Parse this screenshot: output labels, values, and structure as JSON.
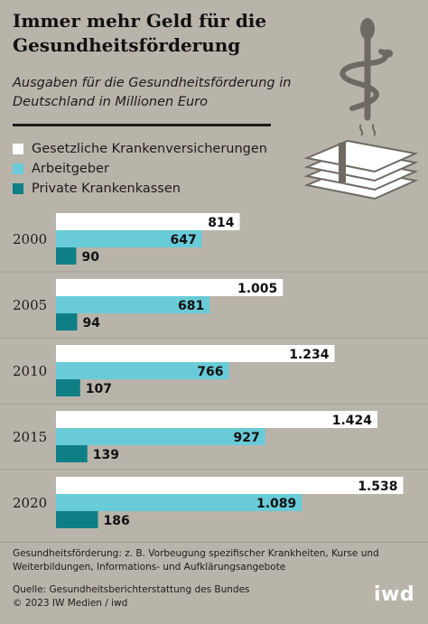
{
  "title": "Immer mehr Geld für die Gesundheitsförderung",
  "subtitle": "Ausgaben für die Gesundheitsförderung in Deutschland in Millionen Euro",
  "colors": {
    "background": "#b9b4aa",
    "gkv": "#ffffff",
    "arbeitgeber": "#69cbd8",
    "pkv": "#0f7f86"
  },
  "chart_data": {
    "type": "bar",
    "orientation": "horizontal",
    "categories": [
      "2000",
      "2005",
      "2010",
      "2015",
      "2020"
    ],
    "series": [
      {
        "name": "Gesetzliche Krankenversicherungen",
        "values": [
          814,
          1005,
          1234,
          1424,
          1538
        ],
        "labels": [
          "814",
          "1.005",
          "1.234",
          "1.424",
          "1.538"
        ]
      },
      {
        "name": "Arbeitgeber",
        "values": [
          647,
          681,
          766,
          927,
          1089
        ],
        "labels": [
          "647",
          "681",
          "766",
          "927",
          "1.089"
        ]
      },
      {
        "name": "Private Krankenkassen",
        "values": [
          90,
          94,
          107,
          139,
          186
        ],
        "labels": [
          "90",
          "94",
          "107",
          "139",
          "186"
        ]
      }
    ],
    "title": "Ausgaben für die Gesundheitsförderung in Deutschland in Millionen Euro",
    "xlabel": "",
    "ylabel": "",
    "unit": "Millionen Euro",
    "legend_position": "top-left",
    "grid": false
  },
  "footnote": "Gesundheitsförderung: z. B. Vorbeugung spezifischer Krankheiten, Kurse und Weiterbildungen, Informations- und Aufklärungsangebote",
  "source": "Quelle: Gesundheitsberichterstattung des Bundes",
  "copyright": "© 2023 IW Medien / iwd",
  "logo": "iwd"
}
